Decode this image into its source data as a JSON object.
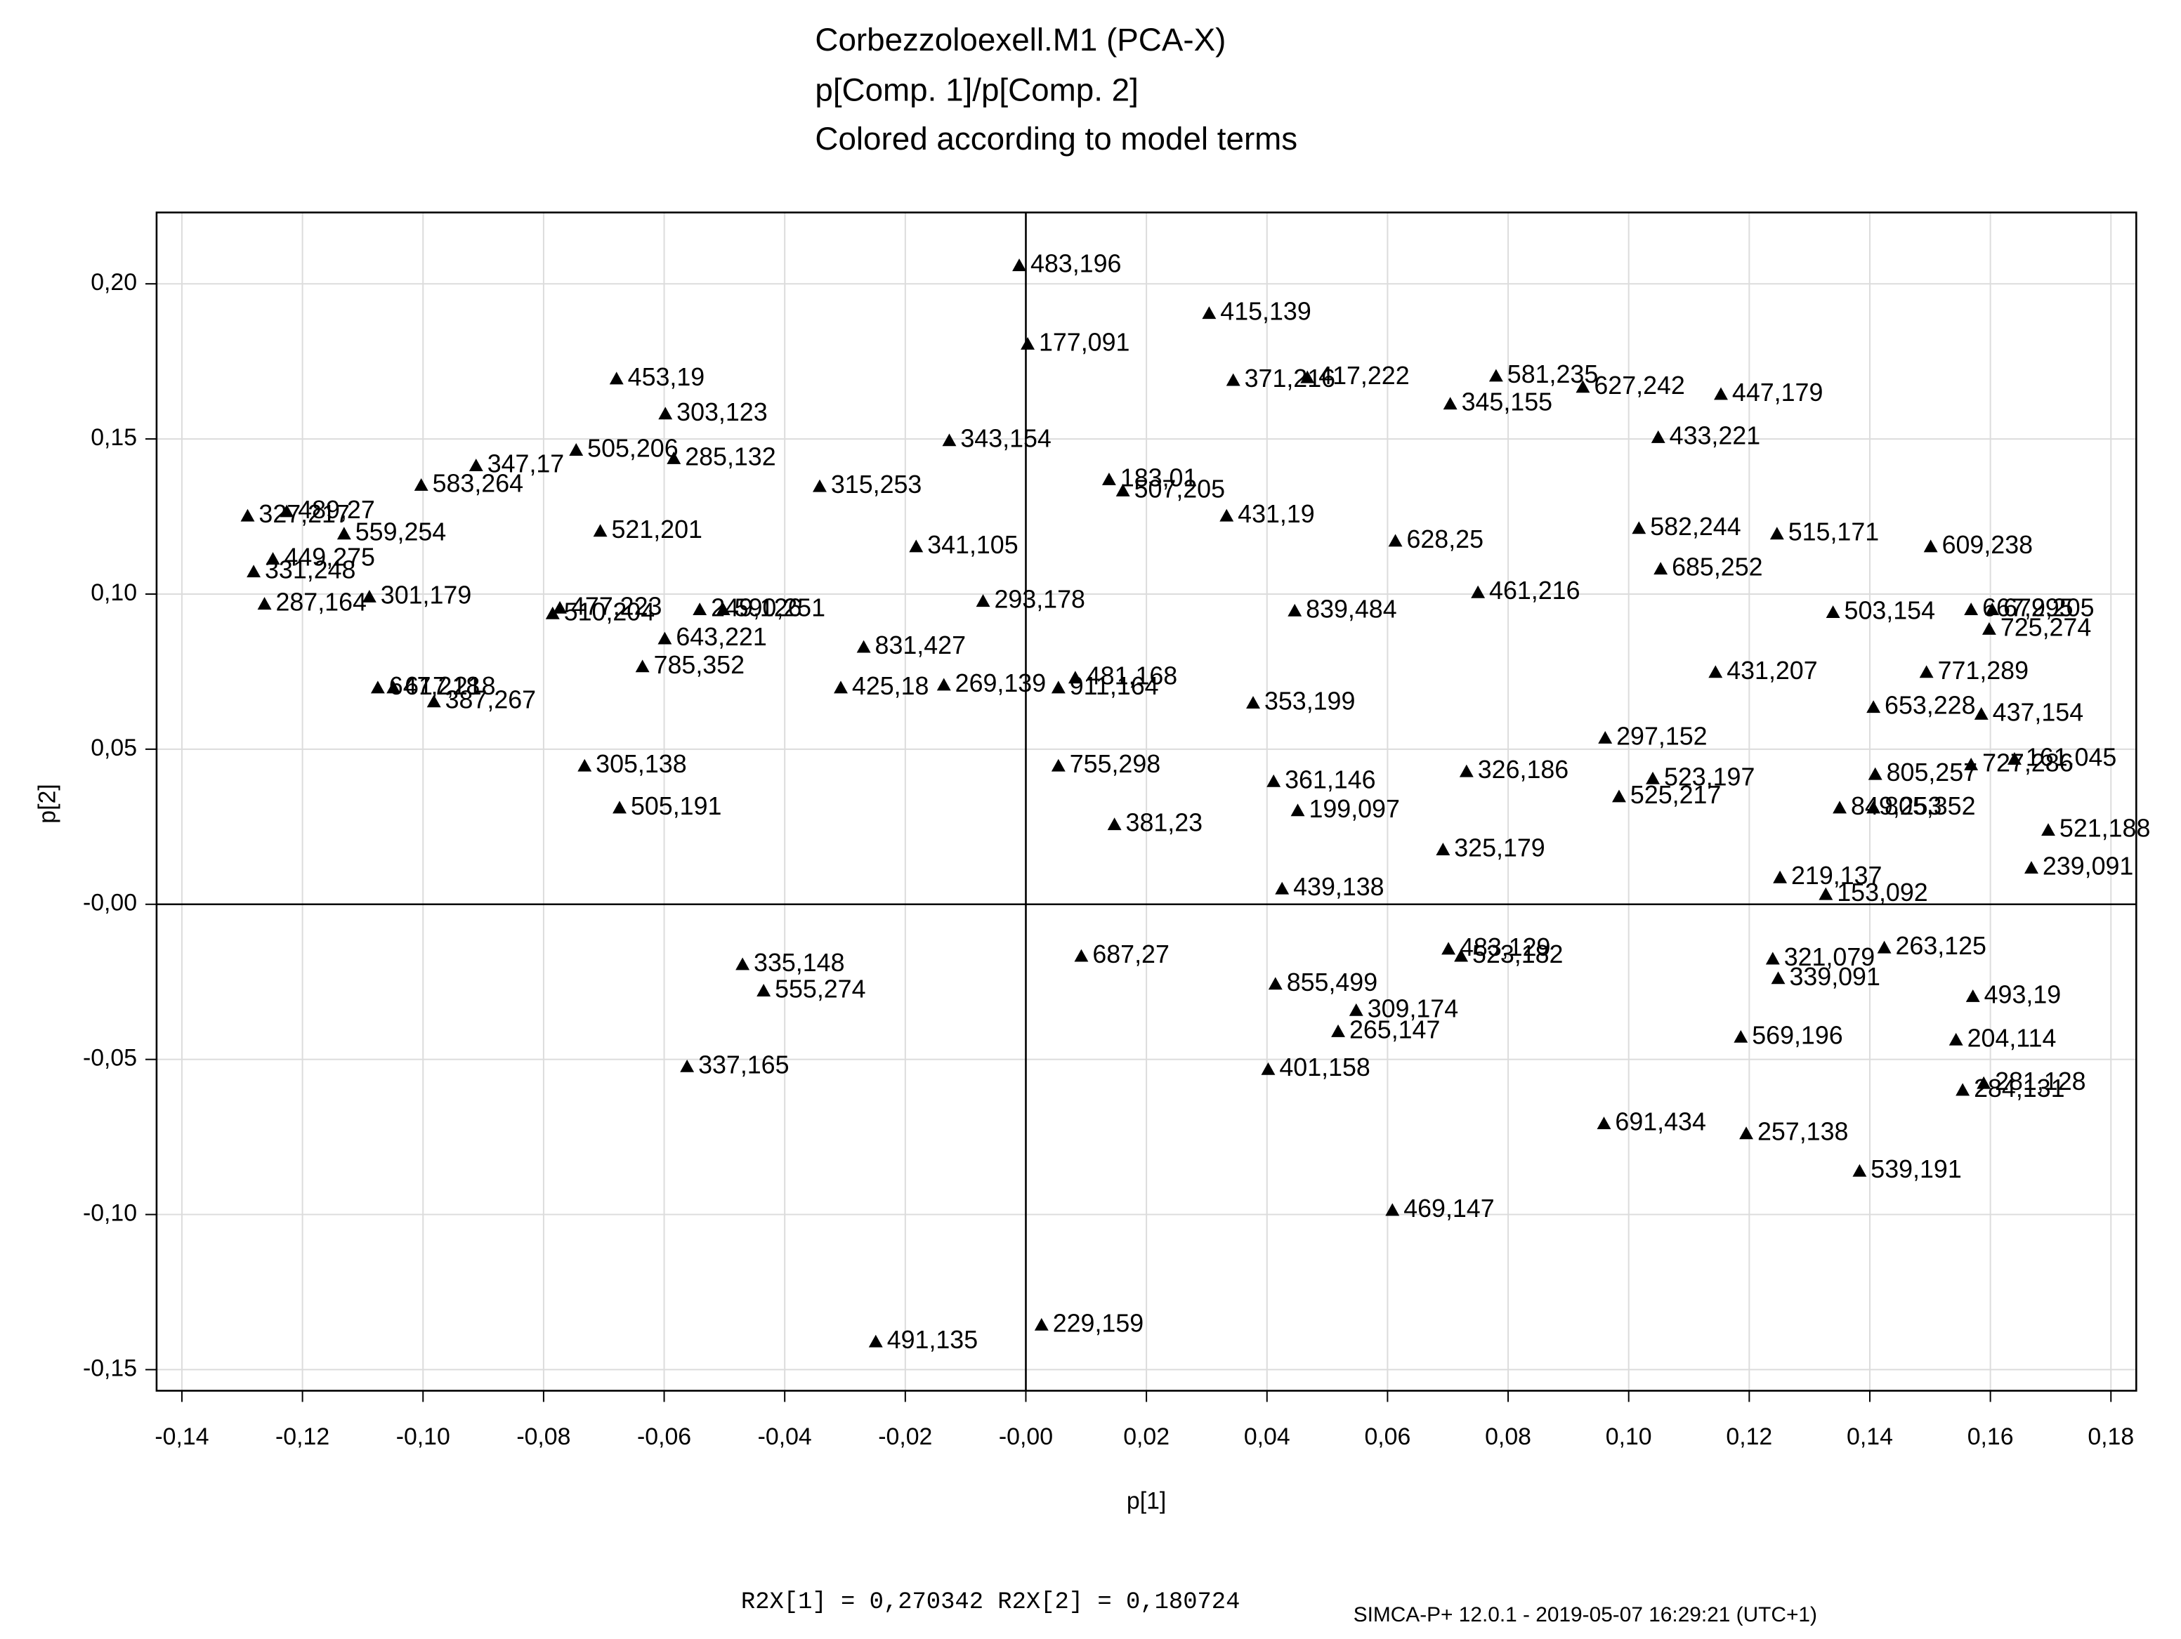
{
  "chart_data": {
    "type": "scatter",
    "title_lines": [
      "Corbezzoloexell.M1 (PCA-X)",
      "p[Comp. 1]/p[Comp. 2]",
      "Colored according to model terms"
    ],
    "xlabel": "p[1]",
    "ylabel": "p[2]",
    "footer_stats": "R2X[1] = 0,270342 R2X[2] = 0,180724",
    "footer_software": "SIMCA-P+ 12.0.1 - 2019-05-07 16:29:21 (UTC+1)",
    "xlim": [
      -0.1442,
      0.1842
    ],
    "ylim": [
      -0.1568,
      0.223
    ],
    "xticks": [
      {
        "value": -0.14,
        "label": "-0,14"
      },
      {
        "value": -0.12,
        "label": "-0,12"
      },
      {
        "value": -0.1,
        "label": "-0,10"
      },
      {
        "value": -0.08,
        "label": "-0,08"
      },
      {
        "value": -0.06,
        "label": "-0,06"
      },
      {
        "value": -0.04,
        "label": "-0,04"
      },
      {
        "value": -0.02,
        "label": "-0,02"
      },
      {
        "value": 0,
        "label": "-0,00"
      },
      {
        "value": 0.02,
        "label": "0,02"
      },
      {
        "value": 0.04,
        "label": "0,04"
      },
      {
        "value": 0.06,
        "label": "0,06"
      },
      {
        "value": 0.08,
        "label": "0,08"
      },
      {
        "value": 0.1,
        "label": "0,10"
      },
      {
        "value": 0.12,
        "label": "0,12"
      },
      {
        "value": 0.14,
        "label": "0,14"
      },
      {
        "value": 0.16,
        "label": "0,16"
      },
      {
        "value": 0.18,
        "label": "0,18"
      }
    ],
    "yticks": [
      {
        "value": -0.15,
        "label": "-0,15"
      },
      {
        "value": -0.1,
        "label": "-0,10"
      },
      {
        "value": -0.05,
        "label": "-0,05"
      },
      {
        "value": 0,
        "label": "-0,00"
      },
      {
        "value": 0.05,
        "label": "0,05"
      },
      {
        "value": 0.1,
        "label": "0,10"
      },
      {
        "value": 0.15,
        "label": "0,15"
      },
      {
        "value": 0.2,
        "label": "0,20"
      }
    ],
    "grid": true,
    "series": [
      {
        "color": "#000000",
        "labels": [
          "483,196",
          "415,139",
          "177,091",
          "453,19",
          "303,123",
          "371,216",
          "417,222",
          "581,235",
          "627,242",
          "345,155",
          "447,179",
          "433,221",
          "347,17",
          "505,206",
          "285,132",
          "343,154",
          "583,264",
          "315,253",
          "183,01",
          "507,205",
          "431,19",
          "327,217",
          "489,27",
          "559,254",
          "521,201",
          "341,105",
          "628,25",
          "582,244",
          "515,171",
          "609,238",
          "449,275",
          "331,248",
          "685,252",
          "301,179",
          "287,164",
          "477,223",
          "510,204",
          "249,126",
          "590,251",
          "293,178",
          "839,484",
          "461,216",
          "503,154",
          "667,295",
          "679,205",
          "725,274",
          "643,221",
          "831,427",
          "785,352",
          "431,207",
          "771,289",
          "481,168",
          "911,164",
          "269,139",
          "425,18",
          "647,218",
          "617,218",
          "387,267",
          "353,199",
          "653,228",
          "437,154",
          "297,152",
          "305,138",
          "755,298",
          "361,146",
          "326,186",
          "523,197",
          "161,045",
          "805,257",
          "727,286",
          "525,217",
          "505,191",
          "199,097",
          "849,253",
          "805,352",
          "381,23",
          "521,188",
          "325,179",
          "239,091",
          "219,137",
          "153,092",
          "439,138",
          "687,27",
          "335,148",
          "555,274",
          "483,129",
          "523,182",
          "263,125",
          "321,079",
          "339,091",
          "855,499",
          "309,174",
          "265,147",
          "493,19",
          "569,196",
          "204,114",
          "337,165",
          "401,158",
          "281,128",
          "284,131",
          "691,434",
          "257,138",
          "539,191",
          "469,147",
          "229,159",
          "491,135"
        ],
        "x": [
          -0.0011,
          0.0304,
          0.0003,
          -0.0679,
          -0.0598,
          0.0344,
          0.0467,
          0.078,
          0.0924,
          0.0704,
          0.1153,
          0.1049,
          -0.0912,
          -0.0746,
          -0.0584,
          -0.0127,
          -0.1003,
          -0.0342,
          0.0138,
          0.0161,
          0.0333,
          -0.1291,
          -0.1226,
          -0.1131,
          -0.0706,
          -0.0182,
          0.0613,
          0.1017,
          0.1246,
          0.1501,
          -0.1249,
          -0.1281,
          0.1053,
          -0.1089,
          -0.1263,
          -0.0773,
          -0.0785,
          -0.0541,
          -0.0502,
          -0.0071,
          0.0446,
          0.075,
          0.1339,
          0.1568,
          0.1603,
          0.1598,
          -0.0599,
          -0.0269,
          -0.0636,
          0.1144,
          0.1494,
          0.0082,
          0.0054,
          -0.0136,
          -0.0307,
          -0.1075,
          -0.1049,
          -0.0982,
          0.0377,
          0.1406,
          0.1585,
          0.0961,
          -0.0732,
          0.0054,
          0.0411,
          0.0731,
          0.104,
          0.164,
          0.1409,
          0.1568,
          0.0984,
          -0.0674,
          0.0451,
          0.135,
          0.1406,
          0.0147,
          0.1696,
          0.0692,
          0.1668,
          0.1251,
          0.1327,
          0.0425,
          0.0092,
          -0.047,
          -0.0435,
          0.0701,
          0.0722,
          0.1424,
          0.1239,
          0.1248,
          0.0414,
          0.0548,
          0.0518,
          0.1571,
          0.1186,
          0.1543,
          -0.0562,
          0.0402,
          0.1589,
          0.1554,
          0.0959,
          0.1195,
          0.1383,
          0.0608,
          0.0026,
          -0.0249
        ],
        "values": [
          0.2059,
          0.1905,
          0.1806,
          0.1694,
          0.1581,
          0.1689,
          0.1698,
          0.1703,
          0.1667,
          0.1613,
          0.1644,
          0.1505,
          0.1414,
          0.1464,
          0.1437,
          0.1495,
          0.1351,
          0.1347,
          0.1369,
          0.1333,
          0.1252,
          0.1252,
          0.1266,
          0.1194,
          0.1203,
          0.1153,
          0.1171,
          0.1212,
          0.1194,
          0.1153,
          0.1113,
          0.1072,
          0.1081,
          0.0991,
          0.0968,
          0.0955,
          0.0937,
          0.095,
          0.095,
          0.0977,
          0.0946,
          0.1005,
          0.0941,
          0.095,
          0.095,
          0.0887,
          0.0856,
          0.0829,
          0.0766,
          0.0748,
          0.0748,
          0.073,
          0.0698,
          0.0707,
          0.0698,
          0.0698,
          0.0698,
          0.0653,
          0.0649,
          0.0635,
          0.0613,
          0.0536,
          0.0446,
          0.0446,
          0.0396,
          0.0428,
          0.0405,
          0.0468,
          0.0419,
          0.045,
          0.0347,
          0.0311,
          0.0302,
          0.0311,
          0.0311,
          0.0257,
          0.0239,
          0.0176,
          0.0117,
          0.0086,
          0.0032,
          0.005,
          -0.0167,
          -0.0194,
          -0.0279,
          -0.0144,
          -0.0167,
          -0.014,
          -0.0176,
          -0.0239,
          -0.0257,
          -0.0342,
          -0.041,
          -0.0297,
          -0.0428,
          -0.0437,
          -0.0523,
          -0.0532,
          -0.0577,
          -0.0599,
          -0.0707,
          -0.0739,
          -0.086,
          -0.0986,
          -0.1356,
          -0.141
        ]
      }
    ]
  }
}
